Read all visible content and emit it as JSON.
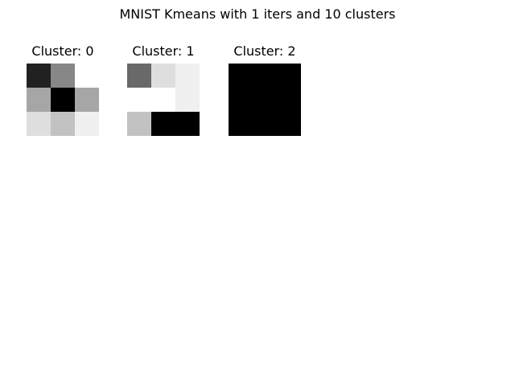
{
  "chart_data": {
    "type": "heatmap",
    "title": "MNIST Kmeans with 1 iters and 10 clusters",
    "colormap": "gray_r",
    "panels": [
      {
        "title": "Cluster: 0",
        "values": [
          [
            0.87,
            0.47,
            0.0
          ],
          [
            0.35,
            1.0,
            0.35
          ],
          [
            0.13,
            0.24,
            0.06
          ]
        ]
      },
      {
        "title": "Cluster: 1",
        "values": [
          [
            0.59,
            0.13,
            0.06
          ],
          [
            0.0,
            0.0,
            0.06
          ],
          [
            0.24,
            1.0,
            1.0
          ]
        ]
      },
      {
        "title": "Cluster: 2",
        "values": [
          [
            1.0,
            1.0,
            1.0
          ],
          [
            1.0,
            1.0,
            1.0
          ],
          [
            1.0,
            1.0,
            1.0
          ]
        ]
      }
    ]
  }
}
